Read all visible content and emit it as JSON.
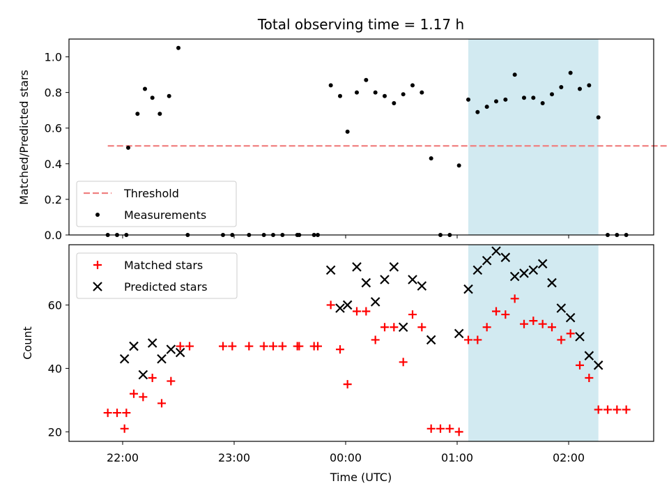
{
  "chart_data": [
    {
      "type": "scatter",
      "title": "Total observing time = 1.17 h",
      "xlabel": "",
      "ylabel": "Matched/Predicted stars",
      "ylim": [
        0,
        1.1
      ],
      "yticks": [
        "0.0",
        "0.2",
        "0.4",
        "0.6",
        "0.8",
        "1.0"
      ],
      "highlight_span": {
        "x_start": "01:06",
        "x_end": "02:16",
        "color": "#add8e6"
      },
      "legend": {
        "placement": "lower-left",
        "entries": [
          "Threshold",
          "Measurements"
        ]
      },
      "series": [
        {
          "name": "Threshold",
          "style": "dashed-line",
          "color": "#f08080",
          "x": [
            "21:52",
            "02:58"
          ],
          "values": [
            0.5,
            0.5
          ]
        },
        {
          "name": "Measurements",
          "style": "dot",
          "color": "#000000",
          "x": [
            "21:52",
            "21:57",
            "22:02",
            "22:03",
            "22:08",
            "22:12",
            "22:16",
            "22:20",
            "22:25",
            "22:30",
            "22:35",
            "22:54",
            "22:59",
            "23:08",
            "23:16",
            "23:21",
            "23:26",
            "23:34",
            "23:35",
            "23:43",
            "23:45",
            "23:52",
            "23:57",
            "00:01",
            "00:06",
            "00:11",
            "00:16",
            "00:21",
            "00:26",
            "00:31",
            "00:36",
            "00:41",
            "00:46",
            "00:51",
            "00:56",
            "01:01",
            "01:06",
            "01:11",
            "01:16",
            "01:21",
            "01:26",
            "01:31",
            "01:36",
            "01:41",
            "01:46",
            "01:51",
            "01:56",
            "02:01",
            "02:06",
            "02:11",
            "02:16",
            "02:21",
            "02:26",
            "02:31"
          ],
          "values": [
            0,
            0,
            0,
            0.49,
            0.68,
            0.82,
            0.77,
            0.68,
            0.78,
            1.05,
            0,
            0,
            0,
            0,
            0,
            0,
            0,
            0,
            0,
            0,
            0,
            0.84,
            0.78,
            0.58,
            0.8,
            0.87,
            0.8,
            0.78,
            0.74,
            0.79,
            0.84,
            0.8,
            0.43,
            0,
            0,
            0.39,
            0.76,
            0.69,
            0.72,
            0.75,
            0.76,
            0.9,
            0.77,
            0.77,
            0.74,
            0.79,
            0.83,
            0.91,
            0.82,
            0.84,
            0.66,
            0,
            0,
            0
          ]
        }
      ]
    },
    {
      "type": "scatter",
      "xlabel": "Time (UTC)",
      "ylabel": "Count",
      "ylim": [
        17,
        79
      ],
      "yticks": [
        "20",
        "40",
        "60"
      ],
      "xticks": [
        "22:00",
        "23:00",
        "00:00",
        "01:00",
        "02:00"
      ],
      "highlight_span": {
        "x_start": "01:06",
        "x_end": "02:16",
        "color": "#add8e6"
      },
      "legend": {
        "placement": "top-left",
        "entries": [
          "Matched stars",
          "Predicted stars"
        ]
      },
      "series": [
        {
          "name": "Matched stars",
          "style": "plus",
          "color": "#ff0000",
          "x": [
            "21:52",
            "21:57",
            "22:02",
            "22:01",
            "22:06",
            "22:11",
            "22:16",
            "22:21",
            "22:26",
            "22:31",
            "22:36",
            "22:54",
            "22:59",
            "23:08",
            "23:16",
            "23:21",
            "23:26",
            "23:34",
            "23:35",
            "23:43",
            "23:45",
            "23:52",
            "23:57",
            "00:01",
            "00:06",
            "00:11",
            "00:16",
            "00:21",
            "00:26",
            "00:31",
            "00:36",
            "00:41",
            "00:46",
            "00:51",
            "00:56",
            "01:01",
            "01:06",
            "01:11",
            "01:16",
            "01:21",
            "01:26",
            "01:31",
            "01:36",
            "01:41",
            "01:46",
            "01:51",
            "01:56",
            "02:01",
            "02:06",
            "02:11",
            "02:16",
            "02:21",
            "02:26",
            "02:31"
          ],
          "values": [
            26,
            26,
            26,
            21,
            32,
            31,
            37,
            29,
            36,
            47,
            47,
            47,
            47,
            47,
            47,
            47,
            47,
            47,
            47,
            47,
            47,
            60,
            46,
            35,
            58,
            58,
            49,
            53,
            53,
            42,
            57,
            53,
            21,
            21,
            21,
            20,
            49,
            49,
            53,
            58,
            57,
            62,
            54,
            55,
            54,
            53,
            49,
            51,
            41,
            37,
            27,
            27,
            27,
            27
          ]
        },
        {
          "name": "Predicted stars",
          "style": "x",
          "color": "#000000",
          "x": [
            "22:01",
            "22:06",
            "22:11",
            "22:16",
            "22:21",
            "22:26",
            "22:31",
            "23:52",
            "23:57",
            "00:01",
            "00:06",
            "00:11",
            "00:16",
            "00:21",
            "00:26",
            "00:31",
            "00:36",
            "00:41",
            "00:46",
            "01:01",
            "01:06",
            "01:11",
            "01:16",
            "01:21",
            "01:26",
            "01:31",
            "01:36",
            "01:41",
            "01:46",
            "01:51",
            "01:56",
            "02:01",
            "02:06",
            "02:11",
            "02:16"
          ],
          "values": [
            43,
            47,
            38,
            48,
            43,
            46,
            45,
            71,
            59,
            60,
            72,
            67,
            61,
            68,
            72,
            53,
            68,
            66,
            49,
            51,
            65,
            71,
            74,
            77,
            75,
            69,
            70,
            71,
            73,
            67,
            59,
            56,
            50,
            44,
            41
          ]
        }
      ]
    }
  ]
}
